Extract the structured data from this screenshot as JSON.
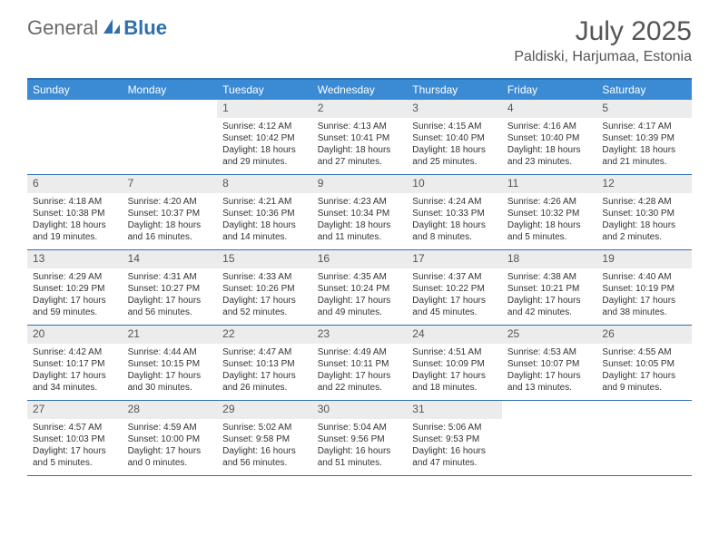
{
  "brand": {
    "general": "General",
    "blue": "Blue"
  },
  "title": "July 2025",
  "location": "Paldiski, Harjumaa, Estonia",
  "calendar": {
    "header_bg": "#3b8bd4",
    "border_color": "#2f6fb0",
    "daynum_bg": "#ececec",
    "weekdays": [
      "Sunday",
      "Monday",
      "Tuesday",
      "Wednesday",
      "Thursday",
      "Friday",
      "Saturday"
    ],
    "weeks": [
      [
        null,
        null,
        {
          "n": "1",
          "sr": "Sunrise: 4:12 AM",
          "ss": "Sunset: 10:42 PM",
          "dl": "Daylight: 18 hours and 29 minutes."
        },
        {
          "n": "2",
          "sr": "Sunrise: 4:13 AM",
          "ss": "Sunset: 10:41 PM",
          "dl": "Daylight: 18 hours and 27 minutes."
        },
        {
          "n": "3",
          "sr": "Sunrise: 4:15 AM",
          "ss": "Sunset: 10:40 PM",
          "dl": "Daylight: 18 hours and 25 minutes."
        },
        {
          "n": "4",
          "sr": "Sunrise: 4:16 AM",
          "ss": "Sunset: 10:40 PM",
          "dl": "Daylight: 18 hours and 23 minutes."
        },
        {
          "n": "5",
          "sr": "Sunrise: 4:17 AM",
          "ss": "Sunset: 10:39 PM",
          "dl": "Daylight: 18 hours and 21 minutes."
        }
      ],
      [
        {
          "n": "6",
          "sr": "Sunrise: 4:18 AM",
          "ss": "Sunset: 10:38 PM",
          "dl": "Daylight: 18 hours and 19 minutes."
        },
        {
          "n": "7",
          "sr": "Sunrise: 4:20 AM",
          "ss": "Sunset: 10:37 PM",
          "dl": "Daylight: 18 hours and 16 minutes."
        },
        {
          "n": "8",
          "sr": "Sunrise: 4:21 AM",
          "ss": "Sunset: 10:36 PM",
          "dl": "Daylight: 18 hours and 14 minutes."
        },
        {
          "n": "9",
          "sr": "Sunrise: 4:23 AM",
          "ss": "Sunset: 10:34 PM",
          "dl": "Daylight: 18 hours and 11 minutes."
        },
        {
          "n": "10",
          "sr": "Sunrise: 4:24 AM",
          "ss": "Sunset: 10:33 PM",
          "dl": "Daylight: 18 hours and 8 minutes."
        },
        {
          "n": "11",
          "sr": "Sunrise: 4:26 AM",
          "ss": "Sunset: 10:32 PM",
          "dl": "Daylight: 18 hours and 5 minutes."
        },
        {
          "n": "12",
          "sr": "Sunrise: 4:28 AM",
          "ss": "Sunset: 10:30 PM",
          "dl": "Daylight: 18 hours and 2 minutes."
        }
      ],
      [
        {
          "n": "13",
          "sr": "Sunrise: 4:29 AM",
          "ss": "Sunset: 10:29 PM",
          "dl": "Daylight: 17 hours and 59 minutes."
        },
        {
          "n": "14",
          "sr": "Sunrise: 4:31 AM",
          "ss": "Sunset: 10:27 PM",
          "dl": "Daylight: 17 hours and 56 minutes."
        },
        {
          "n": "15",
          "sr": "Sunrise: 4:33 AM",
          "ss": "Sunset: 10:26 PM",
          "dl": "Daylight: 17 hours and 52 minutes."
        },
        {
          "n": "16",
          "sr": "Sunrise: 4:35 AM",
          "ss": "Sunset: 10:24 PM",
          "dl": "Daylight: 17 hours and 49 minutes."
        },
        {
          "n": "17",
          "sr": "Sunrise: 4:37 AM",
          "ss": "Sunset: 10:22 PM",
          "dl": "Daylight: 17 hours and 45 minutes."
        },
        {
          "n": "18",
          "sr": "Sunrise: 4:38 AM",
          "ss": "Sunset: 10:21 PM",
          "dl": "Daylight: 17 hours and 42 minutes."
        },
        {
          "n": "19",
          "sr": "Sunrise: 4:40 AM",
          "ss": "Sunset: 10:19 PM",
          "dl": "Daylight: 17 hours and 38 minutes."
        }
      ],
      [
        {
          "n": "20",
          "sr": "Sunrise: 4:42 AM",
          "ss": "Sunset: 10:17 PM",
          "dl": "Daylight: 17 hours and 34 minutes."
        },
        {
          "n": "21",
          "sr": "Sunrise: 4:44 AM",
          "ss": "Sunset: 10:15 PM",
          "dl": "Daylight: 17 hours and 30 minutes."
        },
        {
          "n": "22",
          "sr": "Sunrise: 4:47 AM",
          "ss": "Sunset: 10:13 PM",
          "dl": "Daylight: 17 hours and 26 minutes."
        },
        {
          "n": "23",
          "sr": "Sunrise: 4:49 AM",
          "ss": "Sunset: 10:11 PM",
          "dl": "Daylight: 17 hours and 22 minutes."
        },
        {
          "n": "24",
          "sr": "Sunrise: 4:51 AM",
          "ss": "Sunset: 10:09 PM",
          "dl": "Daylight: 17 hours and 18 minutes."
        },
        {
          "n": "25",
          "sr": "Sunrise: 4:53 AM",
          "ss": "Sunset: 10:07 PM",
          "dl": "Daylight: 17 hours and 13 minutes."
        },
        {
          "n": "26",
          "sr": "Sunrise: 4:55 AM",
          "ss": "Sunset: 10:05 PM",
          "dl": "Daylight: 17 hours and 9 minutes."
        }
      ],
      [
        {
          "n": "27",
          "sr": "Sunrise: 4:57 AM",
          "ss": "Sunset: 10:03 PM",
          "dl": "Daylight: 17 hours and 5 minutes."
        },
        {
          "n": "28",
          "sr": "Sunrise: 4:59 AM",
          "ss": "Sunset: 10:00 PM",
          "dl": "Daylight: 17 hours and 0 minutes."
        },
        {
          "n": "29",
          "sr": "Sunrise: 5:02 AM",
          "ss": "Sunset: 9:58 PM",
          "dl": "Daylight: 16 hours and 56 minutes."
        },
        {
          "n": "30",
          "sr": "Sunrise: 5:04 AM",
          "ss": "Sunset: 9:56 PM",
          "dl": "Daylight: 16 hours and 51 minutes."
        },
        {
          "n": "31",
          "sr": "Sunrise: 5:06 AM",
          "ss": "Sunset: 9:53 PM",
          "dl": "Daylight: 16 hours and 47 minutes."
        },
        null,
        null
      ]
    ]
  }
}
